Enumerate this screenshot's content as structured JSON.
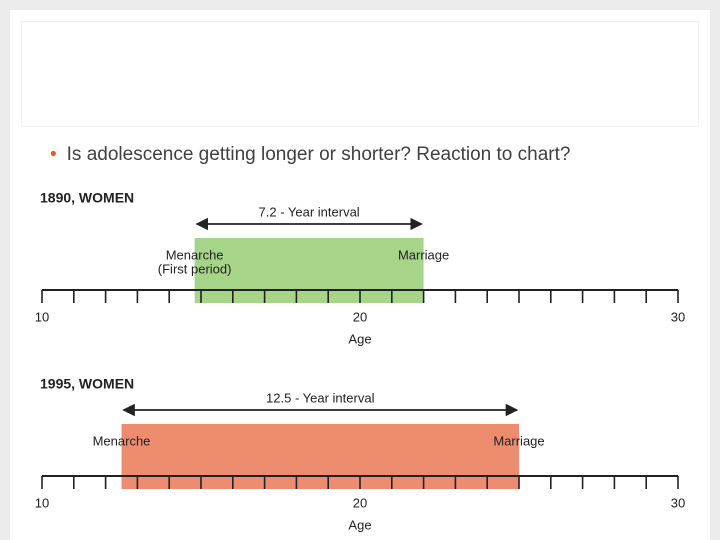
{
  "slide": {
    "bullet": "Is adolescence getting longer or shorter? Reaction to chart?"
  },
  "chart_data": [
    {
      "type": "range",
      "title": "1890, WOMEN",
      "x_label": "Age",
      "xlim": [
        10,
        30
      ],
      "xticks": [
        10,
        20,
        30
      ],
      "minor_xticks": [
        11,
        12,
        13,
        14,
        15,
        16,
        17,
        18,
        19,
        21,
        22,
        23,
        24,
        25,
        26,
        27,
        28,
        29
      ],
      "start": 14.8,
      "end": 22.0,
      "color": "#a6d58a",
      "start_label": "Menarche",
      "start_sublabel": "(First period)",
      "end_label": "Marriage",
      "interval_label": "7.2 - Year interval"
    },
    {
      "type": "range",
      "title": "1995, WOMEN",
      "x_label": "Age",
      "xlim": [
        10,
        30
      ],
      "xticks": [
        10,
        20,
        30
      ],
      "minor_xticks": [
        11,
        12,
        13,
        14,
        15,
        16,
        17,
        18,
        19,
        21,
        22,
        23,
        24,
        25,
        26,
        27,
        28,
        29
      ],
      "start": 12.5,
      "end": 25.0,
      "color": "#ee8c70",
      "start_label": "Menarche",
      "end_label": "Marriage",
      "interval_label": "12.5 - Year interval"
    }
  ]
}
